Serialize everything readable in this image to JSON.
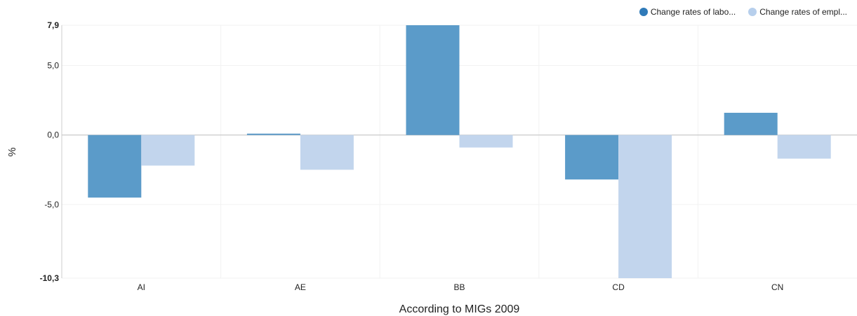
{
  "chart_data": {
    "type": "bar",
    "categories": [
      "AI",
      "AE",
      "BB",
      "CD",
      "CN"
    ],
    "series": [
      {
        "name": "Change rates of labo...",
        "color": "#5b9bc9",
        "values": [
          -4.5,
          0.1,
          7.9,
          -3.2,
          1.6
        ]
      },
      {
        "name": "Change rates of empl...",
        "color": "#c2d5ed",
        "values": [
          -2.2,
          -2.5,
          -0.9,
          -10.3,
          -1.7
        ]
      }
    ],
    "xlabel": "According to MIGs 2009",
    "ylabel": "%",
    "ylim": [
      -10.3,
      7.9
    ],
    "yticks": [
      {
        "value": 7.9,
        "label": "7,9",
        "bold": true
      },
      {
        "value": 5.0,
        "label": "5,0",
        "bold": false
      },
      {
        "value": 0.0,
        "label": "0,0",
        "bold": false
      },
      {
        "value": -5.0,
        "label": "-5,0",
        "bold": false
      },
      {
        "value": -10.3,
        "label": "-10,3",
        "bold": true
      }
    ],
    "legend_position": "top-right",
    "grid": true
  }
}
